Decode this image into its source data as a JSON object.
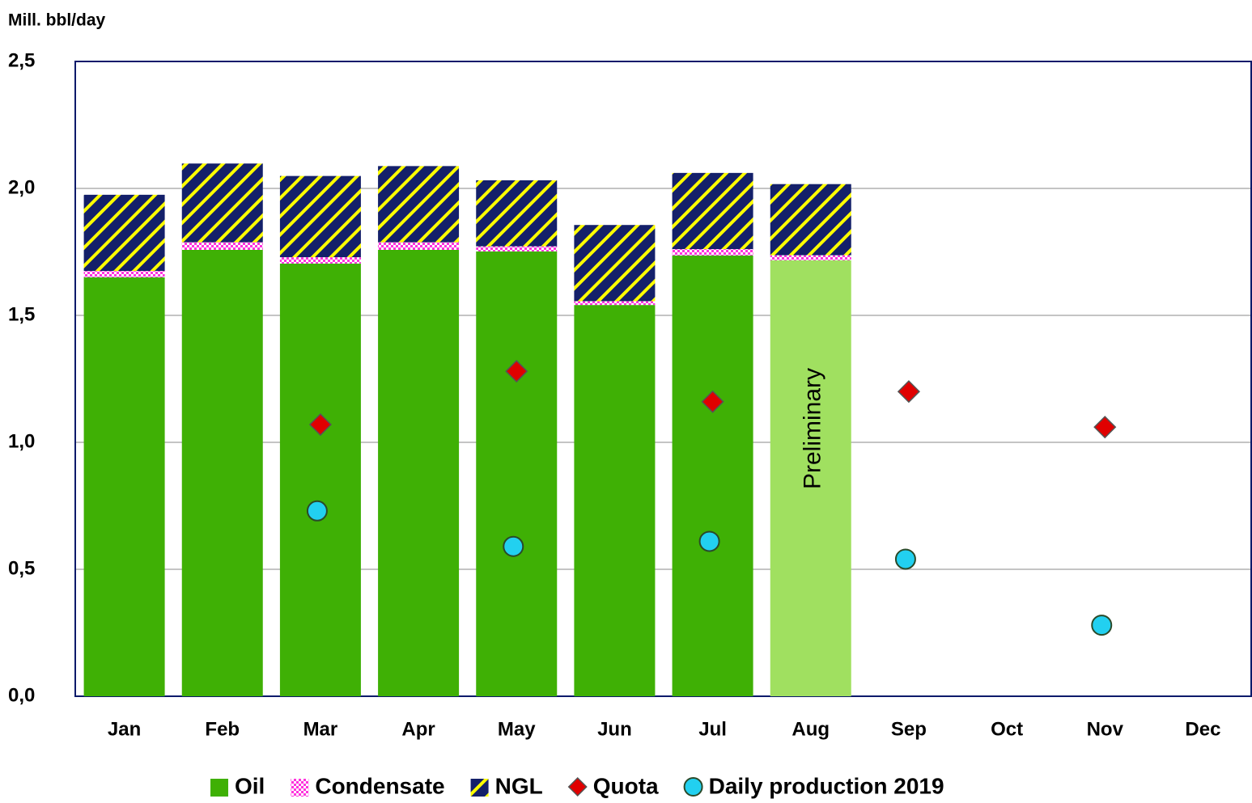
{
  "chart_data": {
    "type": "bar",
    "y_axis_label": "Mill. bbl/day",
    "categories": [
      "Jan",
      "Feb",
      "Mar",
      "Apr",
      "May",
      "Jun",
      "Jul",
      "Aug",
      "Sep",
      "Oct",
      "Nov",
      "Dec"
    ],
    "annotation": "Preliminary",
    "series": [
      {
        "name": "Oil",
        "kind": "bar",
        "color": "#3fb005",
        "colors": [
          "#3fb005",
          "#3fb005",
          "#3fb005",
          "#3fb005",
          "#3fb005",
          "#3fb005",
          "#3fb005",
          "#a0e060",
          null,
          null,
          null,
          null
        ],
        "values": [
          1.65,
          1.758,
          1.704,
          1.758,
          1.752,
          1.541,
          1.736,
          1.717,
          null,
          null,
          null,
          null
        ]
      },
      {
        "name": "Condensate",
        "kind": "bar",
        "pattern": "checker",
        "color": "#ff33dd",
        "pattern_color": "#ffffff",
        "values": [
          0.025,
          0.03,
          0.025,
          0.03,
          0.02,
          0.015,
          0.025,
          0.02,
          null,
          null,
          null,
          null
        ]
      },
      {
        "name": "NGL",
        "kind": "bar",
        "pattern": "stripes",
        "color": "#14206a",
        "pattern_color": "#ffff00",
        "values": [
          0.3,
          0.31,
          0.32,
          0.3,
          0.26,
          0.3,
          0.3,
          0.28,
          null,
          null,
          null,
          null
        ]
      },
      {
        "name": "Quota",
        "kind": "scatter",
        "marker": "diamond",
        "color": "#e00000",
        "values": [
          null,
          null,
          1.07,
          null,
          1.28,
          null,
          1.16,
          null,
          1.2,
          null,
          1.06,
          null
        ]
      },
      {
        "name": "Daily production 2019",
        "kind": "scatter",
        "marker": "circle",
        "color": "#22d0f0",
        "values": [
          null,
          null,
          0.73,
          null,
          0.59,
          null,
          0.61,
          null,
          0.54,
          null,
          0.28,
          null
        ]
      }
    ],
    "ylim": [
      0,
      2.5
    ],
    "yticks": [
      {
        "value": 0,
        "label": "0,0"
      },
      {
        "value": 0.5,
        "label": "0,5"
      },
      {
        "value": 1,
        "label": "1,0"
      },
      {
        "value": 1.5,
        "label": "1,5"
      },
      {
        "value": 2,
        "label": "2,0"
      },
      {
        "value": 2.5,
        "label": "2,5"
      }
    ],
    "grid": true,
    "legend": "bottom"
  }
}
